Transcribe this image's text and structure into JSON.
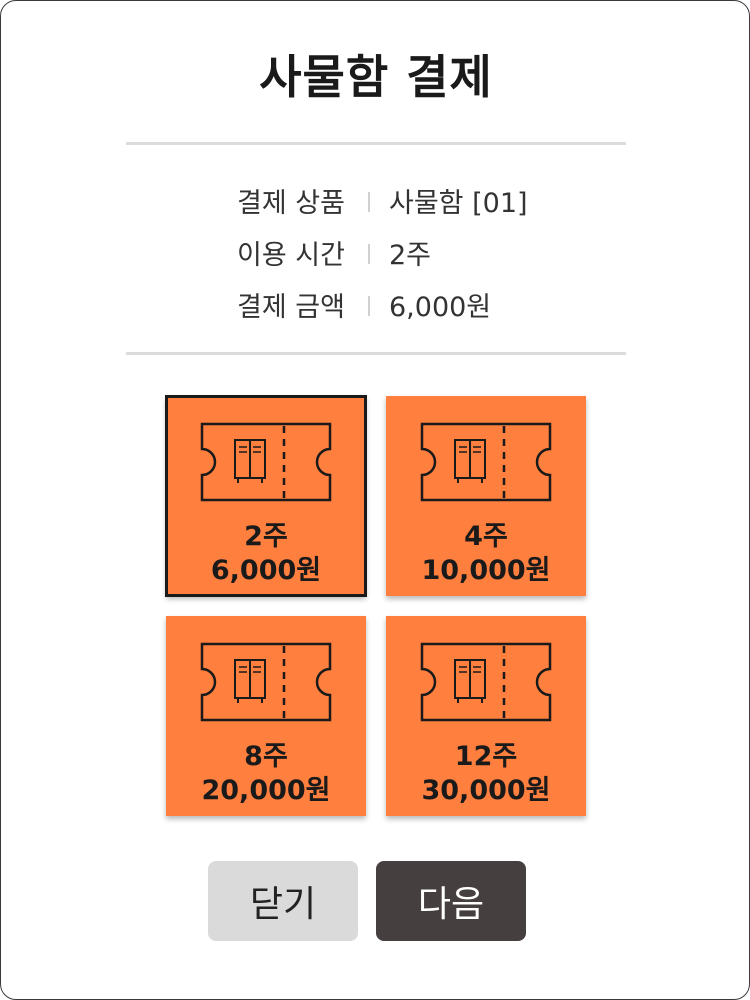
{
  "dialog": {
    "title": "사물함 결제"
  },
  "info": [
    {
      "label": "결제 상품",
      "value": "사물함 [01]"
    },
    {
      "label": "이용 시간",
      "value": "2주"
    },
    {
      "label": "결제 금액",
      "value": "6,000원"
    }
  ],
  "options": [
    {
      "period": "2주",
      "price": "6,000원",
      "selected": true,
      "icon": "locker-ticket-icon"
    },
    {
      "period": "4주",
      "price": "10,000원",
      "selected": false,
      "icon": "locker-ticket-icon"
    },
    {
      "period": "8주",
      "price": "20,000원",
      "selected": false,
      "icon": "locker-ticket-icon"
    },
    {
      "period": "12주",
      "price": "30,000원",
      "selected": false,
      "icon": "locker-ticket-icon"
    }
  ],
  "buttons": {
    "close_label": "닫기",
    "next_label": "다음"
  },
  "colors": {
    "option_bg": "#ff7f3f",
    "next_bg": "#463f3f",
    "close_bg": "#dadada"
  }
}
